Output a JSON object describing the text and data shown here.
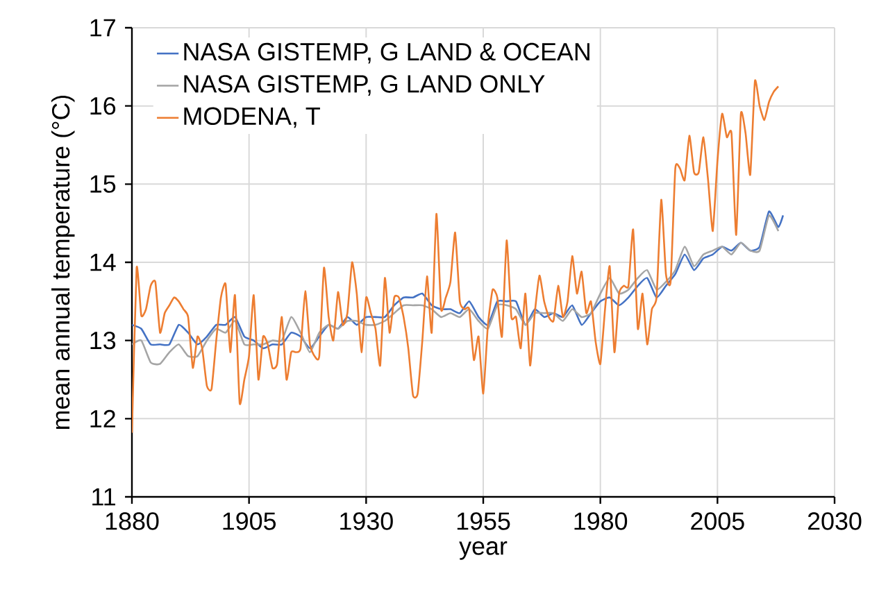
{
  "chart_data": {
    "type": "line",
    "xlabel": "year",
    "ylabel": "mean annual temperature (°C)",
    "xlim": [
      1880,
      2030
    ],
    "ylim": [
      11,
      17
    ],
    "xticks": [
      1880,
      1905,
      1930,
      1955,
      1980,
      2005,
      2030
    ],
    "yticks": [
      11,
      12,
      13,
      14,
      15,
      16,
      17
    ],
    "grid": true,
    "legend": "top left",
    "marker": "none",
    "line_style": "solid",
    "series": [
      {
        "name": "NASA GISTEMP, G LAND & OCEAN",
        "color": "#4472c4",
        "x": [
          1880,
          1882,
          1884,
          1886,
          1888,
          1890,
          1892,
          1894,
          1896,
          1898,
          1900,
          1902,
          1904,
          1906,
          1908,
          1910,
          1912,
          1914,
          1916,
          1918,
          1920,
          1922,
          1924,
          1926,
          1928,
          1930,
          1932,
          1934,
          1936,
          1938,
          1940,
          1942,
          1944,
          1946,
          1948,
          1950,
          1952,
          1954,
          1956,
          1958,
          1960,
          1962,
          1964,
          1966,
          1968,
          1970,
          1972,
          1974,
          1976,
          1978,
          1980,
          1982,
          1984,
          1986,
          1988,
          1990,
          1992,
          1994,
          1996,
          1998,
          2000,
          2002,
          2004,
          2006,
          2008,
          2010,
          2012,
          2014,
          2016,
          2018,
          2019
        ],
        "values": [
          13.2,
          13.15,
          12.95,
          12.95,
          12.95,
          13.2,
          13.1,
          12.95,
          13.05,
          13.2,
          13.2,
          13.3,
          13.05,
          13.0,
          12.9,
          12.95,
          12.95,
          13.1,
          13.05,
          12.9,
          13.05,
          13.2,
          13.15,
          13.3,
          13.2,
          13.3,
          13.3,
          13.3,
          13.45,
          13.55,
          13.55,
          13.6,
          13.45,
          13.4,
          13.4,
          13.35,
          13.5,
          13.3,
          13.2,
          13.5,
          13.5,
          13.5,
          13.2,
          13.4,
          13.3,
          13.35,
          13.3,
          13.45,
          13.2,
          13.35,
          13.5,
          13.55,
          13.45,
          13.55,
          13.7,
          13.8,
          13.55,
          13.7,
          13.85,
          14.1,
          13.9,
          14.05,
          14.1,
          14.2,
          14.15,
          14.25,
          14.15,
          14.2,
          14.65,
          14.45,
          14.6
        ]
      },
      {
        "name": "NASA GISTEMP, G LAND ONLY",
        "color": "#a5a5a5",
        "x": [
          1880,
          1882,
          1884,
          1886,
          1888,
          1890,
          1892,
          1894,
          1896,
          1898,
          1900,
          1902,
          1904,
          1906,
          1908,
          1910,
          1912,
          1914,
          1916,
          1918,
          1920,
          1922,
          1924,
          1926,
          1928,
          1930,
          1932,
          1934,
          1936,
          1938,
          1940,
          1942,
          1944,
          1946,
          1948,
          1950,
          1952,
          1954,
          1956,
          1958,
          1960,
          1962,
          1964,
          1966,
          1968,
          1970,
          1972,
          1974,
          1976,
          1978,
          1980,
          1982,
          1984,
          1986,
          1988,
          1990,
          1992,
          1994,
          1996,
          1998,
          2000,
          2002,
          2004,
          2006,
          2008,
          2010,
          2012,
          2014,
          2016,
          2018
        ],
        "values": [
          12.95,
          13.0,
          12.72,
          12.7,
          12.85,
          12.95,
          12.8,
          12.8,
          13.0,
          13.15,
          13.1,
          13.25,
          12.95,
          12.95,
          12.95,
          13.0,
          13.0,
          13.3,
          13.1,
          12.85,
          13.1,
          13.2,
          13.15,
          13.25,
          13.25,
          13.2,
          13.2,
          13.25,
          13.35,
          13.45,
          13.45,
          13.45,
          13.4,
          13.3,
          13.35,
          13.3,
          13.4,
          13.25,
          13.15,
          13.45,
          13.45,
          13.4,
          13.2,
          13.35,
          13.35,
          13.35,
          13.25,
          13.4,
          13.3,
          13.35,
          13.6,
          13.8,
          13.6,
          13.65,
          13.8,
          13.9,
          13.65,
          13.75,
          13.9,
          14.2,
          13.95,
          14.1,
          14.15,
          14.2,
          14.1,
          14.25,
          14.15,
          14.15,
          14.6,
          14.4
        ]
      },
      {
        "name": "MODENA, T",
        "color": "#ed7d31",
        "x": [
          1880,
          1881,
          1882,
          1883,
          1884,
          1885,
          1886,
          1887,
          1888,
          1889,
          1890,
          1891,
          1892,
          1893,
          1894,
          1895,
          1896,
          1897,
          1898,
          1899,
          1900,
          1901,
          1902,
          1903,
          1904,
          1905,
          1906,
          1907,
          1908,
          1909,
          1910,
          1911,
          1912,
          1913,
          1914,
          1915,
          1916,
          1917,
          1918,
          1919,
          1920,
          1921,
          1922,
          1923,
          1924,
          1925,
          1926,
          1927,
          1928,
          1929,
          1930,
          1931,
          1932,
          1933,
          1934,
          1935,
          1936,
          1937,
          1938,
          1939,
          1940,
          1941,
          1942,
          1943,
          1944,
          1945,
          1946,
          1947,
          1948,
          1949,
          1950,
          1951,
          1952,
          1953,
          1954,
          1955,
          1956,
          1957,
          1958,
          1959,
          1960,
          1961,
          1962,
          1963,
          1964,
          1965,
          1966,
          1967,
          1968,
          1969,
          1970,
          1971,
          1972,
          1973,
          1974,
          1975,
          1976,
          1977,
          1978,
          1979,
          1980,
          1981,
          1982,
          1983,
          1984,
          1985,
          1986,
          1987,
          1988,
          1989,
          1990,
          1991,
          1992,
          1993,
          1994,
          1995,
          1996,
          1997,
          1998,
          1999,
          2000,
          2001,
          2002,
          2003,
          2004,
          2005,
          2006,
          2007,
          2008,
          2009,
          2010,
          2011,
          2012,
          2013,
          2014,
          2015,
          2016,
          2017,
          2018
        ],
        "values": [
          11.82,
          13.93,
          13.32,
          13.4,
          13.7,
          13.75,
          13.1,
          13.35,
          13.45,
          13.55,
          13.5,
          13.4,
          13.3,
          12.65,
          13.05,
          12.9,
          12.42,
          12.38,
          13.0,
          13.55,
          13.72,
          12.85,
          13.58,
          12.2,
          12.5,
          12.8,
          13.58,
          12.5,
          13.05,
          12.95,
          12.65,
          12.7,
          13.3,
          12.5,
          12.85,
          12.85,
          12.9,
          13.63,
          12.95,
          12.8,
          12.8,
          13.93,
          13.3,
          13.0,
          13.62,
          13.2,
          13.35,
          14.0,
          13.6,
          12.85,
          13.55,
          13.35,
          13.15,
          12.68,
          13.8,
          13.1,
          13.55,
          13.55,
          13.3,
          12.9,
          12.3,
          12.32,
          13.0,
          13.82,
          13.1,
          14.62,
          13.4,
          13.55,
          13.75,
          14.38,
          13.5,
          13.4,
          13.4,
          12.75,
          13.05,
          12.32,
          13.2,
          13.65,
          13.55,
          13.05,
          14.28,
          13.3,
          13.3,
          12.9,
          13.6,
          12.68,
          13.35,
          13.83,
          13.5,
          13.3,
          13.25,
          13.7,
          13.3,
          13.5,
          14.08,
          13.6,
          13.88,
          13.35,
          13.5,
          12.98,
          12.7,
          13.4,
          13.95,
          12.85,
          13.6,
          13.7,
          13.7,
          14.42,
          13.15,
          13.6,
          12.95,
          13.4,
          13.55,
          14.8,
          13.85,
          13.75,
          15.2,
          15.2,
          15.05,
          15.62,
          15.15,
          15.15,
          15.6,
          15.05,
          14.4,
          15.3,
          15.9,
          15.6,
          15.65,
          14.35,
          15.9,
          15.65,
          15.12,
          16.32,
          16.0,
          15.82,
          16.05,
          16.18,
          16.25
        ]
      }
    ]
  }
}
